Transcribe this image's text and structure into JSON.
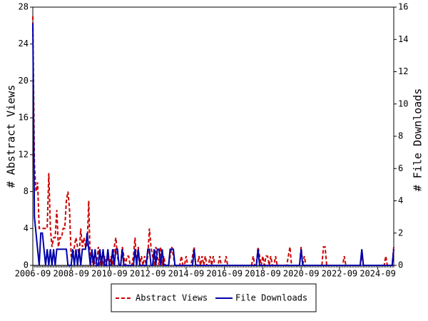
{
  "chart_data": {
    "type": "line",
    "y_label": "# Abstract Views",
    "y2_label": "# File Downloads",
    "categories": [
      "2006-09",
      "2006-10",
      "2006-11",
      "2006-12",
      "2007-01",
      "2007-02",
      "2007-03",
      "2007-04",
      "2007-05",
      "2007-06",
      "2007-07",
      "2007-08",
      "2007-09",
      "2007-10",
      "2007-11",
      "2007-12",
      "2008-01",
      "2008-02",
      "2008-03",
      "2008-04",
      "2008-05",
      "2008-06",
      "2008-07",
      "2008-08",
      "2008-09",
      "2008-10",
      "2008-11",
      "2008-12",
      "2009-01",
      "2009-02",
      "2009-03",
      "2009-04",
      "2009-05",
      "2009-06",
      "2009-07",
      "2009-08",
      "2009-09",
      "2009-10",
      "2009-11",
      "2009-12",
      "2010-01",
      "2010-02",
      "2010-03",
      "2010-04",
      "2010-05",
      "2010-06",
      "2010-07",
      "2010-08",
      "2010-09",
      "2010-10",
      "2010-11",
      "2010-12",
      "2011-01",
      "2011-02",
      "2011-03",
      "2011-04",
      "2011-05",
      "2011-06",
      "2011-07",
      "2011-08",
      "2011-09",
      "2011-10",
      "2011-11",
      "2011-12",
      "2012-01",
      "2012-02",
      "2012-03",
      "2012-04",
      "2012-05",
      "2012-06",
      "2012-07",
      "2012-08",
      "2012-09",
      "2012-10",
      "2012-11",
      "2012-12",
      "2013-01",
      "2013-02",
      "2013-03",
      "2013-04",
      "2013-05",
      "2013-06",
      "2013-07",
      "2013-08",
      "2013-09",
      "2013-10",
      "2013-11",
      "2013-12",
      "2014-01",
      "2014-02",
      "2014-03",
      "2014-04",
      "2014-05",
      "2014-06",
      "2014-07",
      "2014-08",
      "2014-09",
      "2014-10",
      "2014-11",
      "2014-12",
      "2015-01",
      "2015-02",
      "2015-03",
      "2015-04",
      "2015-05",
      "2015-06",
      "2015-07",
      "2015-08",
      "2015-09",
      "2015-10",
      "2015-11",
      "2015-12",
      "2016-01",
      "2016-02",
      "2016-03",
      "2016-04",
      "2016-05",
      "2016-06",
      "2016-07",
      "2016-08",
      "2016-09",
      "2016-10",
      "2016-11",
      "2016-12",
      "2017-01",
      "2017-02",
      "2017-03",
      "2017-04",
      "2017-05",
      "2017-06",
      "2017-07",
      "2017-08",
      "2017-09",
      "2017-10",
      "2017-11",
      "2017-12",
      "2018-01",
      "2018-02",
      "2018-03",
      "2018-04",
      "2018-05",
      "2018-06",
      "2018-07",
      "2018-08",
      "2018-09",
      "2018-10",
      "2018-11",
      "2018-12",
      "2019-01",
      "2019-02",
      "2019-03",
      "2019-04",
      "2019-05",
      "2019-06",
      "2019-07",
      "2019-08",
      "2019-09",
      "2019-10",
      "2019-11",
      "2019-12",
      "2020-01",
      "2020-02",
      "2020-03",
      "2020-04",
      "2020-05",
      "2020-06",
      "2020-07",
      "2020-08",
      "2020-09",
      "2020-10",
      "2020-11",
      "2020-12",
      "2021-01",
      "2021-02",
      "2021-03",
      "2021-04",
      "2021-05",
      "2021-06",
      "2021-07",
      "2021-08",
      "2021-09",
      "2021-10",
      "2021-11",
      "2021-12",
      "2022-01",
      "2022-02",
      "2022-03",
      "2022-04",
      "2022-05",
      "2022-06",
      "2022-07",
      "2022-08",
      "2022-09",
      "2022-10",
      "2022-11",
      "2022-12",
      "2023-01",
      "2023-02",
      "2023-03",
      "2023-04",
      "2023-05",
      "2023-06",
      "2023-07",
      "2023-08",
      "2023-09",
      "2023-10",
      "2023-11",
      "2023-12",
      "2024-01",
      "2024-02",
      "2024-03",
      "2024-04",
      "2024-05",
      "2024-06",
      "2024-07",
      "2024-08",
      "2024-09",
      "2024-10",
      "2024-11",
      "2024-12",
      "2025-01",
      "2025-02",
      "2025-03",
      "2025-04",
      "2025-05",
      "2025-06",
      "2025-07"
    ],
    "xticks": [
      "2006-09",
      "2008-09",
      "2010-09",
      "2012-09",
      "2014-09",
      "2016-09",
      "2018-09",
      "2020-09",
      "2022-09",
      "2024-09"
    ],
    "ylim": [
      0,
      28
    ],
    "yticks": [
      0,
      4,
      8,
      12,
      16,
      20,
      24,
      28
    ],
    "y2lim": [
      0,
      16
    ],
    "y2ticks": [
      0,
      2,
      4,
      6,
      8,
      10,
      12,
      14,
      16
    ],
    "series": [
      {
        "name": "Abstract Views",
        "color": "#cc0000",
        "dashed": true,
        "values": [
          27,
          11,
          8,
          9,
          4,
          4,
          4,
          4,
          4,
          4,
          10,
          4,
          2,
          3,
          3,
          6,
          2,
          3,
          3,
          4,
          4,
          7,
          8,
          6,
          1,
          1,
          2,
          3,
          2,
          1,
          4,
          2,
          3,
          2,
          2,
          7,
          0,
          0,
          1,
          0,
          0,
          2,
          0,
          1,
          0,
          1,
          0,
          1,
          0,
          1,
          0,
          2,
          3,
          1,
          0,
          0,
          2,
          1,
          0,
          1,
          1,
          0,
          0,
          1,
          3,
          0,
          2,
          0,
          1,
          0,
          1,
          0,
          1,
          4,
          2,
          1,
          0,
          2,
          1,
          0,
          2,
          0,
          1,
          0,
          0,
          0,
          1,
          2,
          1,
          0,
          0,
          0,
          0,
          1,
          0,
          0,
          1,
          0,
          0,
          0,
          1,
          2,
          0,
          0,
          1,
          0,
          1,
          0,
          1,
          0,
          0,
          1,
          0,
          1,
          0,
          0,
          0,
          1,
          0,
          0,
          0,
          1,
          0,
          0,
          0,
          0,
          0,
          0,
          0,
          0,
          0,
          0,
          0,
          0,
          0,
          0,
          0,
          0,
          1,
          0,
          0,
          2,
          1,
          0,
          1,
          0,
          1,
          1,
          0,
          1,
          0,
          0,
          1,
          0,
          0,
          0,
          0,
          0,
          0,
          0,
          1,
          2,
          0,
          0,
          0,
          0,
          0,
          0,
          2,
          0,
          1,
          0,
          0,
          0,
          0,
          0,
          0,
          0,
          0,
          0,
          0,
          0,
          2,
          2,
          0,
          0,
          0,
          0,
          0,
          0,
          0,
          0,
          0,
          0,
          0,
          1,
          0,
          0,
          0,
          0,
          0,
          0,
          0,
          0,
          0,
          0,
          1,
          0,
          0,
          0,
          0,
          0,
          0,
          0,
          0,
          0,
          0,
          0,
          0,
          0,
          0,
          1,
          0,
          0,
          0,
          0,
          2
        ]
      },
      {
        "name": "File Downloads",
        "color": "#0000aa",
        "dashed": false,
        "axis": "y2",
        "values": [
          15,
          3,
          2,
          1,
          0,
          2,
          2,
          1,
          0,
          1,
          0,
          1,
          0,
          1,
          0,
          1,
          1,
          1,
          1,
          1,
          1,
          1,
          0,
          0,
          0,
          1,
          0,
          1,
          0,
          1,
          0,
          1,
          1,
          1,
          2,
          1,
          0,
          1,
          0,
          1,
          0,
          0,
          1,
          0,
          1,
          0,
          0,
          1,
          0,
          0,
          1,
          0,
          1,
          1,
          0,
          0,
          1,
          0,
          0,
          0,
          0,
          0,
          0,
          0,
          1,
          0,
          1,
          0,
          0,
          0,
          0,
          0,
          1,
          1,
          0,
          0,
          1,
          0,
          1,
          1,
          0,
          1,
          0,
          0,
          0,
          0,
          1,
          1,
          1,
          0,
          0,
          0,
          0,
          0,
          0,
          0,
          0,
          0,
          0,
          0,
          0,
          1,
          0,
          0,
          0,
          0,
          0,
          0,
          0,
          0,
          0,
          0,
          0,
          0,
          0,
          0,
          0,
          0,
          0,
          0,
          0,
          0,
          0,
          0,
          0,
          0,
          0,
          0,
          0,
          0,
          0,
          0,
          0,
          0,
          0,
          0,
          0,
          0,
          0,
          0,
          0,
          1,
          0,
          0,
          0,
          0,
          0,
          0,
          0,
          0,
          0,
          0,
          0,
          0,
          0,
          0,
          0,
          0,
          0,
          0,
          0,
          0,
          0,
          0,
          0,
          0,
          0,
          0,
          1,
          0,
          0,
          0,
          0,
          0,
          0,
          0,
          0,
          0,
          0,
          0,
          0,
          0,
          0,
          0,
          0,
          0,
          0,
          0,
          0,
          0,
          0,
          0,
          0,
          0,
          0,
          0,
          0,
          0,
          0,
          0,
          0,
          0,
          0,
          0,
          0,
          0,
          1,
          0,
          0,
          0,
          0,
          0,
          0,
          0,
          0,
          0,
          0,
          0,
          0,
          0,
          0,
          0,
          0,
          0,
          0,
          0,
          1
        ]
      }
    ]
  }
}
